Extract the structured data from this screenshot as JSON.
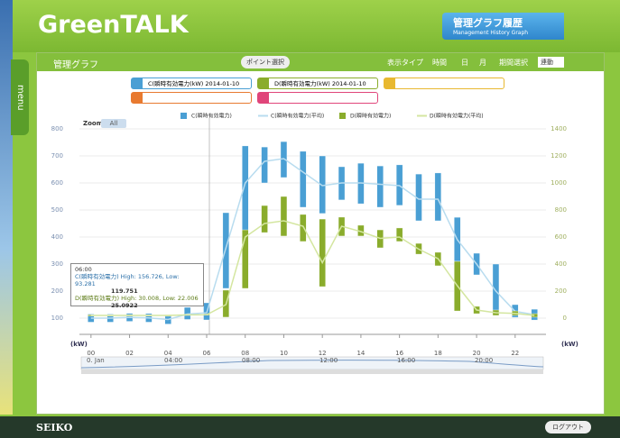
{
  "header": {
    "logo": "GreenTALK",
    "badge_title": "管理グラフ履歴",
    "badge_subtitle": "Management History Graph"
  },
  "menu": "menu",
  "panel": {
    "title": "管理グラフ",
    "point_button": "ポイント選択",
    "display_type": "表示タイプ",
    "type_options": [
      "時間",
      "日",
      "月"
    ],
    "period": "期間選択",
    "period_value": "連動",
    "selections": [
      {
        "label": "C(瞬時有効電力(kW)",
        "date": "2014-01-10"
      },
      {
        "label": "D(瞬時有効電力(kW)",
        "date": "2014-01-10"
      }
    ]
  },
  "chart_data": {
    "type": "combo",
    "zoom": "Zoom",
    "zoom_all": "All",
    "y_label": "(kW)",
    "y2_label": "(kW)",
    "x": [
      0,
      1,
      2,
      3,
      4,
      5,
      6,
      7,
      8,
      9,
      10,
      11,
      12,
      13,
      14,
      15,
      16,
      17,
      18,
      19,
      20,
      21,
      22,
      23
    ],
    "xlim": [
      -0.6,
      23.6
    ],
    "xticks": [
      {
        "value": 0,
        "label": "00"
      },
      {
        "value": 2,
        "label": "02"
      },
      {
        "value": 4,
        "label": "04"
      },
      {
        "value": 6,
        "label": "06"
      },
      {
        "value": 8,
        "label": "08"
      },
      {
        "value": 10,
        "label": "10"
      },
      {
        "value": 12,
        "label": "12"
      },
      {
        "value": 14,
        "label": "14"
      },
      {
        "value": 16,
        "label": "16"
      },
      {
        "value": 18,
        "label": "18"
      },
      {
        "value": 20,
        "label": "20"
      },
      {
        "value": 22,
        "label": "22"
      }
    ],
    "ylim": [
      40,
      840
    ],
    "yticks": [
      100,
      200,
      300,
      400,
      500,
      600,
      700,
      800
    ],
    "y2lim": [
      -120,
      1480
    ],
    "y2ticks": [
      0,
      200,
      400,
      600,
      800,
      1000,
      1200,
      1400
    ],
    "grid": true,
    "series": [
      {
        "name": "C(瞬時有効電力)",
        "type": "range",
        "color": "#4a9fd4",
        "high": [
          115,
          115,
          118,
          117,
          112,
          140,
          156.726,
          490,
          737,
          733,
          753,
          717,
          700,
          660,
          673,
          663,
          667,
          633,
          637,
          473,
          340,
          300,
          150,
          133
        ],
        "low": [
          85,
          85,
          88,
          85,
          78,
          95,
          93.281,
          210,
          420,
          600,
          620,
          510,
          487,
          537,
          523,
          510,
          517,
          460,
          460,
          310,
          260,
          127,
          103,
          93
        ]
      },
      {
        "name": "C(瞬時有効電力(平均)",
        "type": "line",
        "color": "#b8dcef",
        "values": [
          100,
          100,
          103,
          101,
          95,
          115,
          119.751,
          360,
          600,
          680,
          690,
          640,
          590,
          600,
          600,
          595,
          590,
          540,
          540,
          390,
          300,
          200,
          125,
          113
        ]
      },
      {
        "name": "D(瞬時有効電力)",
        "type": "range",
        "color": "#8aac2c",
        "axis": "y2",
        "high": [
          25,
          25,
          26,
          25,
          24,
          28,
          30.008,
          207,
          653,
          833,
          900,
          767,
          733,
          747,
          687,
          653,
          667,
          553,
          487,
          420,
          87,
          60,
          53,
          33
        ],
        "low": [
          15,
          15,
          16,
          15,
          14,
          20,
          22.006,
          7,
          220,
          633,
          607,
          567,
          233,
          607,
          607,
          520,
          567,
          473,
          387,
          53,
          33,
          20,
          20,
          7
        ]
      },
      {
        "name": "D(瞬時有効電力(平均)",
        "type": "line",
        "color": "#d4e6a0",
        "axis": "y2",
        "values": [
          20,
          20,
          20,
          20,
          20,
          24,
          25.0922,
          100,
          600,
          700,
          720,
          680,
          410,
          680,
          640,
          590,
          600,
          510,
          440,
          240,
          60,
          40,
          35,
          20
        ]
      }
    ],
    "tooltip": {
      "time": "06:00",
      "c_range": "C(瞬時有効電力) High: 156.726, Low: 93.281",
      "c_avg": "119.751",
      "d_range": "D(瞬時有効電力) High: 30.008, Low: 22.006",
      "d_avg": "25.0922"
    },
    "navigator": [
      "0. Jan",
      "04:00",
      "08:00",
      "12:00",
      "16:00",
      "20:00"
    ]
  },
  "footer": {
    "brand": "SEIKO",
    "logout": "ログアウト"
  }
}
